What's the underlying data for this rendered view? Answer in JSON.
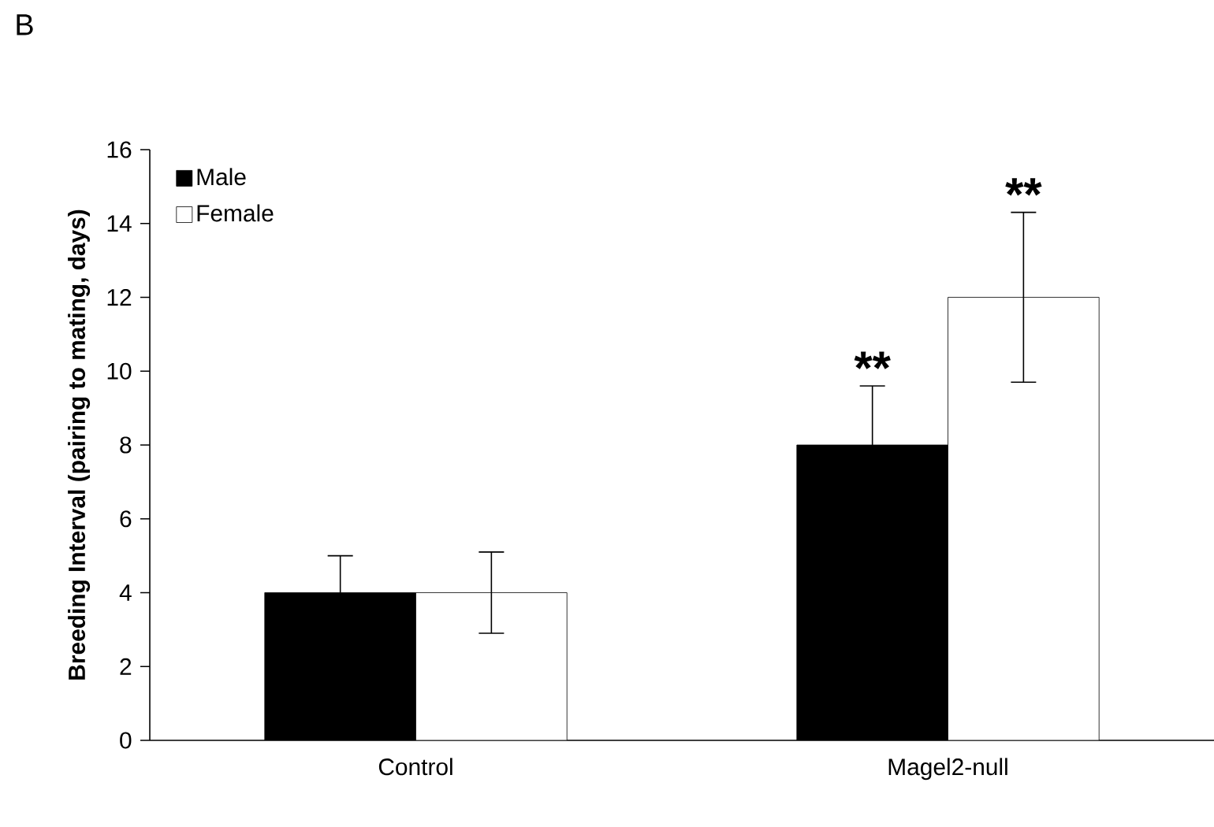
{
  "chart_data": {
    "type": "bar",
    "ylabel": "Breeding Interval (pairing to mating, days)",
    "categories": [
      "Control",
      "Magel2-null"
    ],
    "series": [
      {
        "name": "Male",
        "color": "#000000",
        "values": [
          4,
          8
        ],
        "errors": [
          1,
          1.6
        ]
      },
      {
        "name": "Female",
        "color": "#ffffff",
        "values": [
          4,
          12
        ],
        "errors": [
          1.1,
          2.3
        ]
      }
    ],
    "ylim": [
      0,
      16
    ],
    "yticks": [
      0,
      2,
      4,
      6,
      8,
      10,
      12,
      14,
      16
    ],
    "grid": false,
    "legend": "top left",
    "annotations": [
      "B",
      {
        "text": "**",
        "x": "Magel2-null",
        "y": 8
      },
      {
        "text": "**",
        "x": "Magel2-null",
        "y": 12
      }
    ]
  }
}
